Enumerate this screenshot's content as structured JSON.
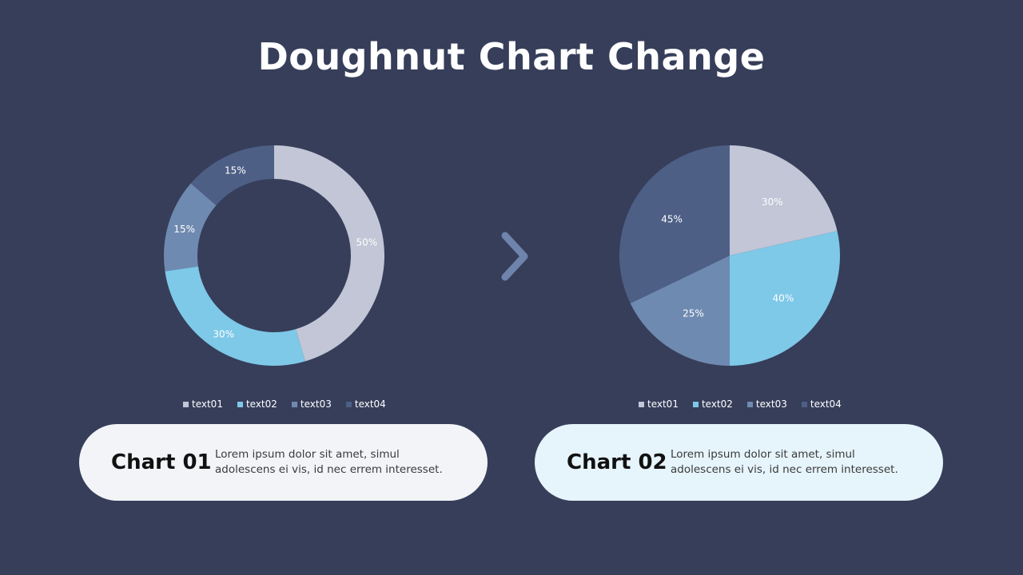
{
  "title": "Doughnut Chart Change",
  "colors": {
    "background": "#363e5a",
    "text01": "#c2c6d6",
    "text02": "#7ec8e8",
    "text03": "#6f8ab0",
    "text04": "#4e5f86",
    "arrow": "#6e84ad"
  },
  "icons": {
    "arrow": "chevron-right-icon"
  },
  "chart_data": [
    {
      "type": "doughnut",
      "legend_position": "bottom",
      "categories": [
        "text01",
        "text02",
        "text03",
        "text04"
      ],
      "values": [
        50,
        30,
        15,
        15
      ],
      "labels": [
        "50%",
        "30%",
        "15%",
        "15%"
      ]
    },
    {
      "type": "pie",
      "legend_position": "bottom",
      "categories": [
        "text01",
        "text02",
        "text03",
        "text04"
      ],
      "values": [
        30,
        40,
        25,
        45
      ],
      "labels": [
        "30%",
        "40%",
        "25%",
        "45%"
      ]
    }
  ],
  "cards": [
    {
      "title": "Chart 01",
      "text": "Lorem ipsum dolor sit amet, simul adolescens ei vis, id nec errem interesset."
    },
    {
      "title": "Chart 02",
      "text": "Lorem ipsum dolor sit amet, simul adolescens ei vis, id nec errem interesset."
    }
  ]
}
